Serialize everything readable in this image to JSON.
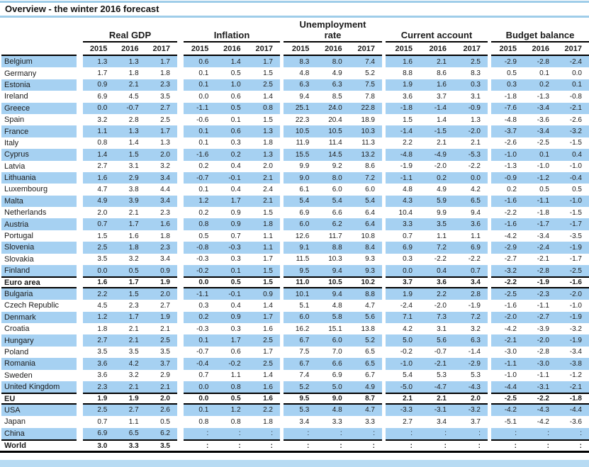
{
  "title": "Overview - the winter 2016 forecast",
  "columns": {
    "groups": [
      "Real GDP",
      "Inflation",
      "Unemployment rate",
      "Current account",
      "Budget balance"
    ],
    "years": [
      "2015",
      "2016",
      "2017"
    ]
  },
  "colors": {
    "row_highlight_blue": "#a6d1f2",
    "title_rule_blue": "#9fcde9",
    "bottom_bar_blue": "#b7dbf3",
    "line_black": "#000000"
  },
  "rows": [
    {
      "name": "Belgium",
      "style": "normal",
      "values": [
        [
          "1.3",
          "1.3",
          "1.7"
        ],
        [
          "0.6",
          "1.4",
          "1.7"
        ],
        [
          "8.3",
          "8.0",
          "7.4"
        ],
        [
          "1.6",
          "2.1",
          "2.5"
        ],
        [
          "-2.9",
          "-2.8",
          "-2.4"
        ]
      ]
    },
    {
      "name": "Germany",
      "style": "normal",
      "values": [
        [
          "1.7",
          "1.8",
          "1.8"
        ],
        [
          "0.1",
          "0.5",
          "1.5"
        ],
        [
          "4.8",
          "4.9",
          "5.2"
        ],
        [
          "8.8",
          "8.6",
          "8.3"
        ],
        [
          "0.5",
          "0.1",
          "0.0"
        ]
      ]
    },
    {
      "name": "Estonia",
      "style": "normal",
      "values": [
        [
          "0.9",
          "2.1",
          "2.3"
        ],
        [
          "0.1",
          "1.0",
          "2.5"
        ],
        [
          "6.3",
          "6.3",
          "7.5"
        ],
        [
          "1.9",
          "1.6",
          "0.3"
        ],
        [
          "0.3",
          "0.2",
          "0.1"
        ]
      ]
    },
    {
      "name": "Ireland",
      "style": "normal",
      "values": [
        [
          "6.9",
          "4.5",
          "3.5"
        ],
        [
          "0.0",
          "0.6",
          "1.4"
        ],
        [
          "9.4",
          "8.5",
          "7.8"
        ],
        [
          "3.6",
          "3.7",
          "3.1"
        ],
        [
          "-1.8",
          "-1.3",
          "-0.8"
        ]
      ]
    },
    {
      "name": "Greece",
      "style": "normal",
      "values": [
        [
          "0.0",
          "-0.7",
          "2.7"
        ],
        [
          "-1.1",
          "0.5",
          "0.8"
        ],
        [
          "25.1",
          "24.0",
          "22.8"
        ],
        [
          "-1.8",
          "-1.4",
          "-0.9"
        ],
        [
          "-7.6",
          "-3.4",
          "-2.1"
        ]
      ]
    },
    {
      "name": "Spain",
      "style": "normal",
      "values": [
        [
          "3.2",
          "2.8",
          "2.5"
        ],
        [
          "-0.6",
          "0.1",
          "1.5"
        ],
        [
          "22.3",
          "20.4",
          "18.9"
        ],
        [
          "1.5",
          "1.4",
          "1.3"
        ],
        [
          "-4.8",
          "-3.6",
          "-2.6"
        ]
      ]
    },
    {
      "name": "France",
      "style": "normal",
      "values": [
        [
          "1.1",
          "1.3",
          "1.7"
        ],
        [
          "0.1",
          "0.6",
          "1.3"
        ],
        [
          "10.5",
          "10.5",
          "10.3"
        ],
        [
          "-1.4",
          "-1.5",
          "-2.0"
        ],
        [
          "-3.7",
          "-3.4",
          "-3.2"
        ]
      ]
    },
    {
      "name": "Italy",
      "style": "normal",
      "values": [
        [
          "0.8",
          "1.4",
          "1.3"
        ],
        [
          "0.1",
          "0.3",
          "1.8"
        ],
        [
          "11.9",
          "11.4",
          "11.3"
        ],
        [
          "2.2",
          "2.1",
          "2.1"
        ],
        [
          "-2.6",
          "-2.5",
          "-1.5"
        ]
      ]
    },
    {
      "name": "Cyprus",
      "style": "normal",
      "values": [
        [
          "1.4",
          "1.5",
          "2.0"
        ],
        [
          "-1.6",
          "0.2",
          "1.3"
        ],
        [
          "15.5",
          "14.5",
          "13.2"
        ],
        [
          "-4.8",
          "-4.9",
          "-5.3"
        ],
        [
          "-1.0",
          "0.1",
          "0.4"
        ]
      ]
    },
    {
      "name": "Latvia",
      "style": "normal",
      "values": [
        [
          "2.7",
          "3.1",
          "3.2"
        ],
        [
          "0.2",
          "0.4",
          "2.0"
        ],
        [
          "9.9",
          "9.2",
          "8.6"
        ],
        [
          "-1.9",
          "-2.0",
          "-2.2"
        ],
        [
          "-1.3",
          "-1.0",
          "-1.0"
        ]
      ]
    },
    {
      "name": "Lithuania",
      "style": "normal",
      "values": [
        [
          "1.6",
          "2.9",
          "3.4"
        ],
        [
          "-0.7",
          "-0.1",
          "2.1"
        ],
        [
          "9.0",
          "8.0",
          "7.2"
        ],
        [
          "-1.1",
          "0.2",
          "0.0"
        ],
        [
          "-0.9",
          "-1.2",
          "-0.4"
        ]
      ]
    },
    {
      "name": "Luxembourg",
      "style": "normal",
      "values": [
        [
          "4.7",
          "3.8",
          "4.4"
        ],
        [
          "0.1",
          "0.4",
          "2.4"
        ],
        [
          "6.1",
          "6.0",
          "6.0"
        ],
        [
          "4.8",
          "4.9",
          "4.2"
        ],
        [
          "0.2",
          "0.5",
          "0.5"
        ]
      ]
    },
    {
      "name": "Malta",
      "style": "normal",
      "values": [
        [
          "4.9",
          "3.9",
          "3.4"
        ],
        [
          "1.2",
          "1.7",
          "2.1"
        ],
        [
          "5.4",
          "5.4",
          "5.4"
        ],
        [
          "4.3",
          "5.9",
          "6.5"
        ],
        [
          "-1.6",
          "-1.1",
          "-1.0"
        ]
      ]
    },
    {
      "name": "Netherlands",
      "style": "normal",
      "values": [
        [
          "2.0",
          "2.1",
          "2.3"
        ],
        [
          "0.2",
          "0.9",
          "1.5"
        ],
        [
          "6.9",
          "6.6",
          "6.4"
        ],
        [
          "10.4",
          "9.9",
          "9.4"
        ],
        [
          "-2.2",
          "-1.8",
          "-1.5"
        ]
      ]
    },
    {
      "name": "Austria",
      "style": "normal",
      "values": [
        [
          "0.7",
          "1.7",
          "1.6"
        ],
        [
          "0.8",
          "0.9",
          "1.8"
        ],
        [
          "6.0",
          "6.2",
          "6.4"
        ],
        [
          "3.3",
          "3.5",
          "3.6"
        ],
        [
          "-1.6",
          "-1.7",
          "-1.7"
        ]
      ]
    },
    {
      "name": "Portugal",
      "style": "normal",
      "values": [
        [
          "1.5",
          "1.6",
          "1.8"
        ],
        [
          "0.5",
          "0.7",
          "1.1"
        ],
        [
          "12.6",
          "11.7",
          "10.8"
        ],
        [
          "0.7",
          "1.1",
          "1.1"
        ],
        [
          "-4.2",
          "-3.4",
          "-3.5"
        ]
      ]
    },
    {
      "name": "Slovenia",
      "style": "normal",
      "values": [
        [
          "2.5",
          "1.8",
          "2.3"
        ],
        [
          "-0.8",
          "-0.3",
          "1.1"
        ],
        [
          "9.1",
          "8.8",
          "8.4"
        ],
        [
          "6.9",
          "7.2",
          "6.9"
        ],
        [
          "-2.9",
          "-2.4",
          "-1.9"
        ]
      ]
    },
    {
      "name": "Slovakia",
      "style": "normal",
      "values": [
        [
          "3.5",
          "3.2",
          "3.4"
        ],
        [
          "-0.3",
          "0.3",
          "1.7"
        ],
        [
          "11.5",
          "10.3",
          "9.3"
        ],
        [
          "0.3",
          "-2.2",
          "-2.2"
        ],
        [
          "-2.7",
          "-2.1",
          "-1.7"
        ]
      ]
    },
    {
      "name": "Finland",
      "style": "normal",
      "values": [
        [
          "0.0",
          "0.5",
          "0.9"
        ],
        [
          "-0.2",
          "0.1",
          "1.5"
        ],
        [
          "9.5",
          "9.4",
          "9.3"
        ],
        [
          "0.0",
          "0.4",
          "0.7"
        ],
        [
          "-3.2",
          "-2.8",
          "-2.5"
        ]
      ]
    },
    {
      "name": "Euro area",
      "style": "summary",
      "values": [
        [
          "1.6",
          "1.7",
          "1.9"
        ],
        [
          "0.0",
          "0.5",
          "1.5"
        ],
        [
          "11.0",
          "10.5",
          "10.2"
        ],
        [
          "3.7",
          "3.6",
          "3.4"
        ],
        [
          "-2.2",
          "-1.9",
          "-1.6"
        ]
      ]
    },
    {
      "name": "Bulgaria",
      "style": "normal",
      "values": [
        [
          "2.2",
          "1.5",
          "2.0"
        ],
        [
          "-1.1",
          "-0.1",
          "0.9"
        ],
        [
          "10.1",
          "9.4",
          "8.8"
        ],
        [
          "1.9",
          "2.2",
          "2.8"
        ],
        [
          "-2.5",
          "-2.3",
          "-2.0"
        ]
      ]
    },
    {
      "name": "Czech Republic",
      "style": "normal",
      "values": [
        [
          "4.5",
          "2.3",
          "2.7"
        ],
        [
          "0.3",
          "0.4",
          "1.4"
        ],
        [
          "5.1",
          "4.8",
          "4.7"
        ],
        [
          "-2.4",
          "-2.0",
          "-1.9"
        ],
        [
          "-1.6",
          "-1.1",
          "-1.0"
        ]
      ]
    },
    {
      "name": "Denmark",
      "style": "normal",
      "values": [
        [
          "1.2",
          "1.7",
          "1.9"
        ],
        [
          "0.2",
          "0.9",
          "1.7"
        ],
        [
          "6.0",
          "5.8",
          "5.6"
        ],
        [
          "7.1",
          "7.3",
          "7.2"
        ],
        [
          "-2.0",
          "-2.7",
          "-1.9"
        ]
      ]
    },
    {
      "name": "Croatia",
      "style": "normal",
      "values": [
        [
          "1.8",
          "2.1",
          "2.1"
        ],
        [
          "-0.3",
          "0.3",
          "1.6"
        ],
        [
          "16.2",
          "15.1",
          "13.8"
        ],
        [
          "4.2",
          "3.1",
          "3.2"
        ],
        [
          "-4.2",
          "-3.9",
          "-3.2"
        ]
      ]
    },
    {
      "name": "Hungary",
      "style": "normal",
      "values": [
        [
          "2.7",
          "2.1",
          "2.5"
        ],
        [
          "0.1",
          "1.7",
          "2.5"
        ],
        [
          "6.7",
          "6.0",
          "5.2"
        ],
        [
          "5.0",
          "5.6",
          "6.3"
        ],
        [
          "-2.1",
          "-2.0",
          "-1.9"
        ]
      ]
    },
    {
      "name": "Poland",
      "style": "normal",
      "values": [
        [
          "3.5",
          "3.5",
          "3.5"
        ],
        [
          "-0.7",
          "0.6",
          "1.7"
        ],
        [
          "7.5",
          "7.0",
          "6.5"
        ],
        [
          "-0.2",
          "-0.7",
          "-1.4"
        ],
        [
          "-3.0",
          "-2.8",
          "-3.4"
        ]
      ]
    },
    {
      "name": "Romania",
      "style": "normal",
      "values": [
        [
          "3.6",
          "4.2",
          "3.7"
        ],
        [
          "-0.4",
          "-0.2",
          "2.5"
        ],
        [
          "6.7",
          "6.6",
          "6.5"
        ],
        [
          "-1.0",
          "-2.1",
          "-2.9"
        ],
        [
          "-1.1",
          "-3.0",
          "-3.8"
        ]
      ]
    },
    {
      "name": "Sweden",
      "style": "normal",
      "values": [
        [
          "3.6",
          "3.2",
          "2.9"
        ],
        [
          "0.7",
          "1.1",
          "1.4"
        ],
        [
          "7.4",
          "6.9",
          "6.7"
        ],
        [
          "5.4",
          "5.3",
          "5.3"
        ],
        [
          "-1.0",
          "-1.1",
          "-1.2"
        ]
      ]
    },
    {
      "name": "United Kingdom",
      "style": "normal",
      "values": [
        [
          "2.3",
          "2.1",
          "2.1"
        ],
        [
          "0.0",
          "0.8",
          "1.6"
        ],
        [
          "5.2",
          "5.0",
          "4.9"
        ],
        [
          "-5.0",
          "-4.7",
          "-4.3"
        ],
        [
          "-4.4",
          "-3.1",
          "-2.1"
        ]
      ]
    },
    {
      "name": "EU",
      "style": "summary",
      "values": [
        [
          "1.9",
          "1.9",
          "2.0"
        ],
        [
          "0.0",
          "0.5",
          "1.6"
        ],
        [
          "9.5",
          "9.0",
          "8.7"
        ],
        [
          "2.1",
          "2.1",
          "2.0"
        ],
        [
          "-2.5",
          "-2.2",
          "-1.8"
        ]
      ]
    },
    {
      "name": "USA",
      "style": "normal",
      "values": [
        [
          "2.5",
          "2.7",
          "2.6"
        ],
        [
          "0.1",
          "1.2",
          "2.2"
        ],
        [
          "5.3",
          "4.8",
          "4.7"
        ],
        [
          "-3.3",
          "-3.1",
          "-3.2"
        ],
        [
          "-4.2",
          "-4.3",
          "-4.4"
        ]
      ]
    },
    {
      "name": "Japan",
      "style": "normal",
      "values": [
        [
          "0.7",
          "1.1",
          "0.5"
        ],
        [
          "0.8",
          "0.8",
          "1.8"
        ],
        [
          "3.4",
          "3.3",
          "3.3"
        ],
        [
          "2.7",
          "3.4",
          "3.7"
        ],
        [
          "-5.1",
          "-4.2",
          "-3.6"
        ]
      ]
    },
    {
      "name": "China",
      "style": "normal",
      "values": [
        [
          "6.9",
          "6.5",
          "6.2"
        ],
        [
          ":",
          ":",
          ":"
        ],
        [
          ":",
          ":",
          ":"
        ],
        [
          ":",
          ":",
          ":"
        ],
        [
          ":",
          ":",
          ":"
        ]
      ]
    },
    {
      "name": "World",
      "style": "total",
      "values": [
        [
          "3.0",
          "3.3",
          "3.5"
        ],
        [
          ":",
          ":",
          ":"
        ],
        [
          ":",
          ":",
          ":"
        ],
        [
          ":",
          ":",
          ":"
        ],
        [
          ":",
          ":",
          ":"
        ]
      ]
    }
  ]
}
